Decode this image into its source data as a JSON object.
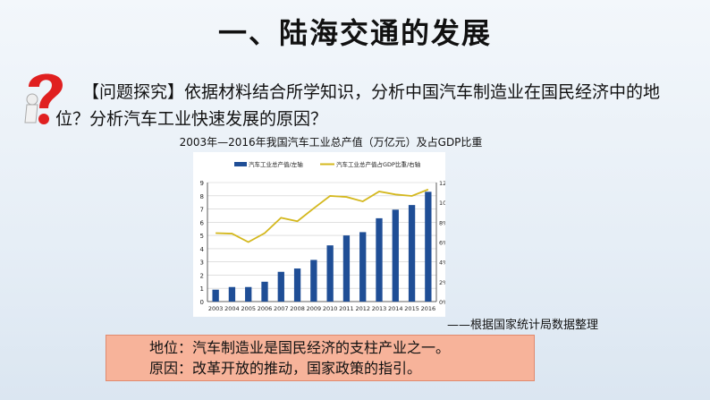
{
  "title": "一、陆海交通的发展",
  "question": "【问题探究】依据材料结合所学知识，分析中国汽车制造业在国民经济中的地位？分析汽车工业快速发展的原因？",
  "source": "——根据国家统计局数据整理",
  "conclusion": [
    "地位：汽车制造业是国民经济的支柱产业之一。",
    "原因：改革开放的推动，国家政策的指引。"
  ],
  "colors": {
    "bar": "#1f4e96",
    "line": "#d4b81e",
    "question_mark": "#e02020",
    "box": "#f7b39a"
  },
  "chart_data": {
    "type": "bar",
    "title": "2003年—2016年我国汽车工业总产值（万亿元）及占GDP比重",
    "categories": [
      "2003",
      "2004",
      "2005",
      "2006",
      "2007",
      "2008",
      "2009",
      "2010",
      "2011",
      "2012",
      "2013",
      "2014",
      "2015",
      "2016"
    ],
    "series": [
      {
        "name": "汽车工业总产值/左轴",
        "type": "bar",
        "axis": "left",
        "values": [
          0.9,
          1.1,
          1.1,
          1.5,
          2.25,
          2.5,
          3.15,
          4.25,
          5.0,
          5.25,
          6.3,
          6.95,
          7.3,
          8.3
        ]
      },
      {
        "name": "汽车工业总产值占GDP比重/右轴",
        "type": "line",
        "axis": "right",
        "values": [
          6.9,
          6.85,
          6.0,
          6.9,
          8.45,
          8.1,
          9.4,
          10.65,
          10.55,
          10.1,
          11.1,
          10.8,
          10.65,
          11.3
        ]
      }
    ],
    "ylim": [
      0,
      9
    ],
    "yticks": [
      "0",
      "1",
      "2",
      "3",
      "4",
      "5",
      "6",
      "7",
      "8",
      "9"
    ],
    "y2lim": [
      0,
      12
    ],
    "y2ticks": [
      "0%",
      "2%",
      "4%",
      "6%",
      "8%",
      "10%",
      "12%"
    ],
    "grid": true,
    "legend": "top"
  }
}
